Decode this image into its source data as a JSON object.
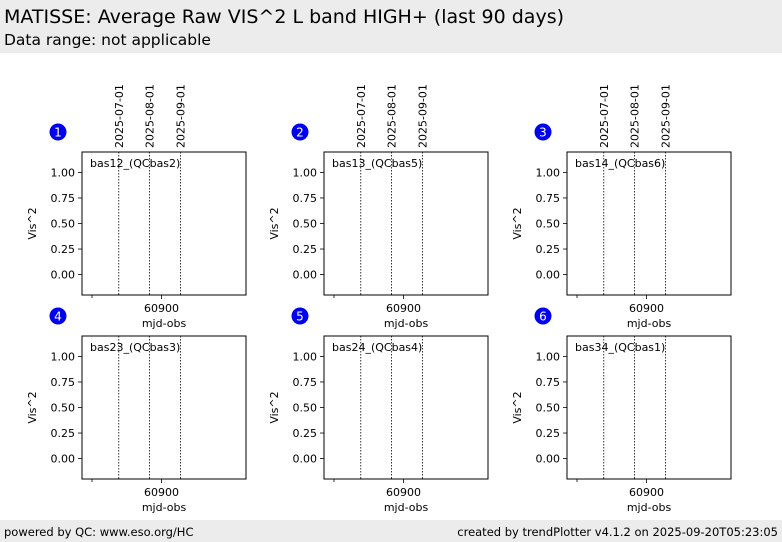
{
  "header": {
    "title": "MATISSE: Average Raw VIS^2 L band HIGH+ (last 90 days)",
    "subtitle": "Data range: not applicable"
  },
  "footer": {
    "left": "powered by QC: www.eso.org/HC",
    "right": "created by trendPlotter v4.1.2 on 2025-09-20T05:23:05"
  },
  "chart_data": {
    "type": "scatter",
    "xlabel": "mjd-obs",
    "ylabel": "Vis^2",
    "xlim": [
      60820,
      60985
    ],
    "ylim": [
      -0.2,
      1.2
    ],
    "xticks": [
      60900
    ],
    "xticks_minor": [
      60820
    ],
    "yticks": [
      0.0,
      0.25,
      0.5,
      0.75,
      1.0
    ],
    "ytick_labels": [
      "0.00",
      "0.25",
      "0.50",
      "0.75",
      "1.00"
    ],
    "date_markers": [
      {
        "label": "2025-07-01",
        "mjd": 60857
      },
      {
        "label": "2025-08-01",
        "mjd": 60888
      },
      {
        "label": "2025-09-01",
        "mjd": 60919
      }
    ],
    "panels": [
      {
        "number": "1",
        "label": "bas12_(QCbas2)",
        "points": []
      },
      {
        "number": "2",
        "label": "bas13_(QCbas5)",
        "points": []
      },
      {
        "number": "3",
        "label": "bas14_(QCbas6)",
        "points": []
      },
      {
        "number": "4",
        "label": "bas23_(QCbas3)",
        "points": []
      },
      {
        "number": "5",
        "label": "bas24_(QCbas4)",
        "points": []
      },
      {
        "number": "6",
        "label": "bas34_(QCbas1)",
        "points": []
      }
    ],
    "marker_color": "#0000ee"
  }
}
